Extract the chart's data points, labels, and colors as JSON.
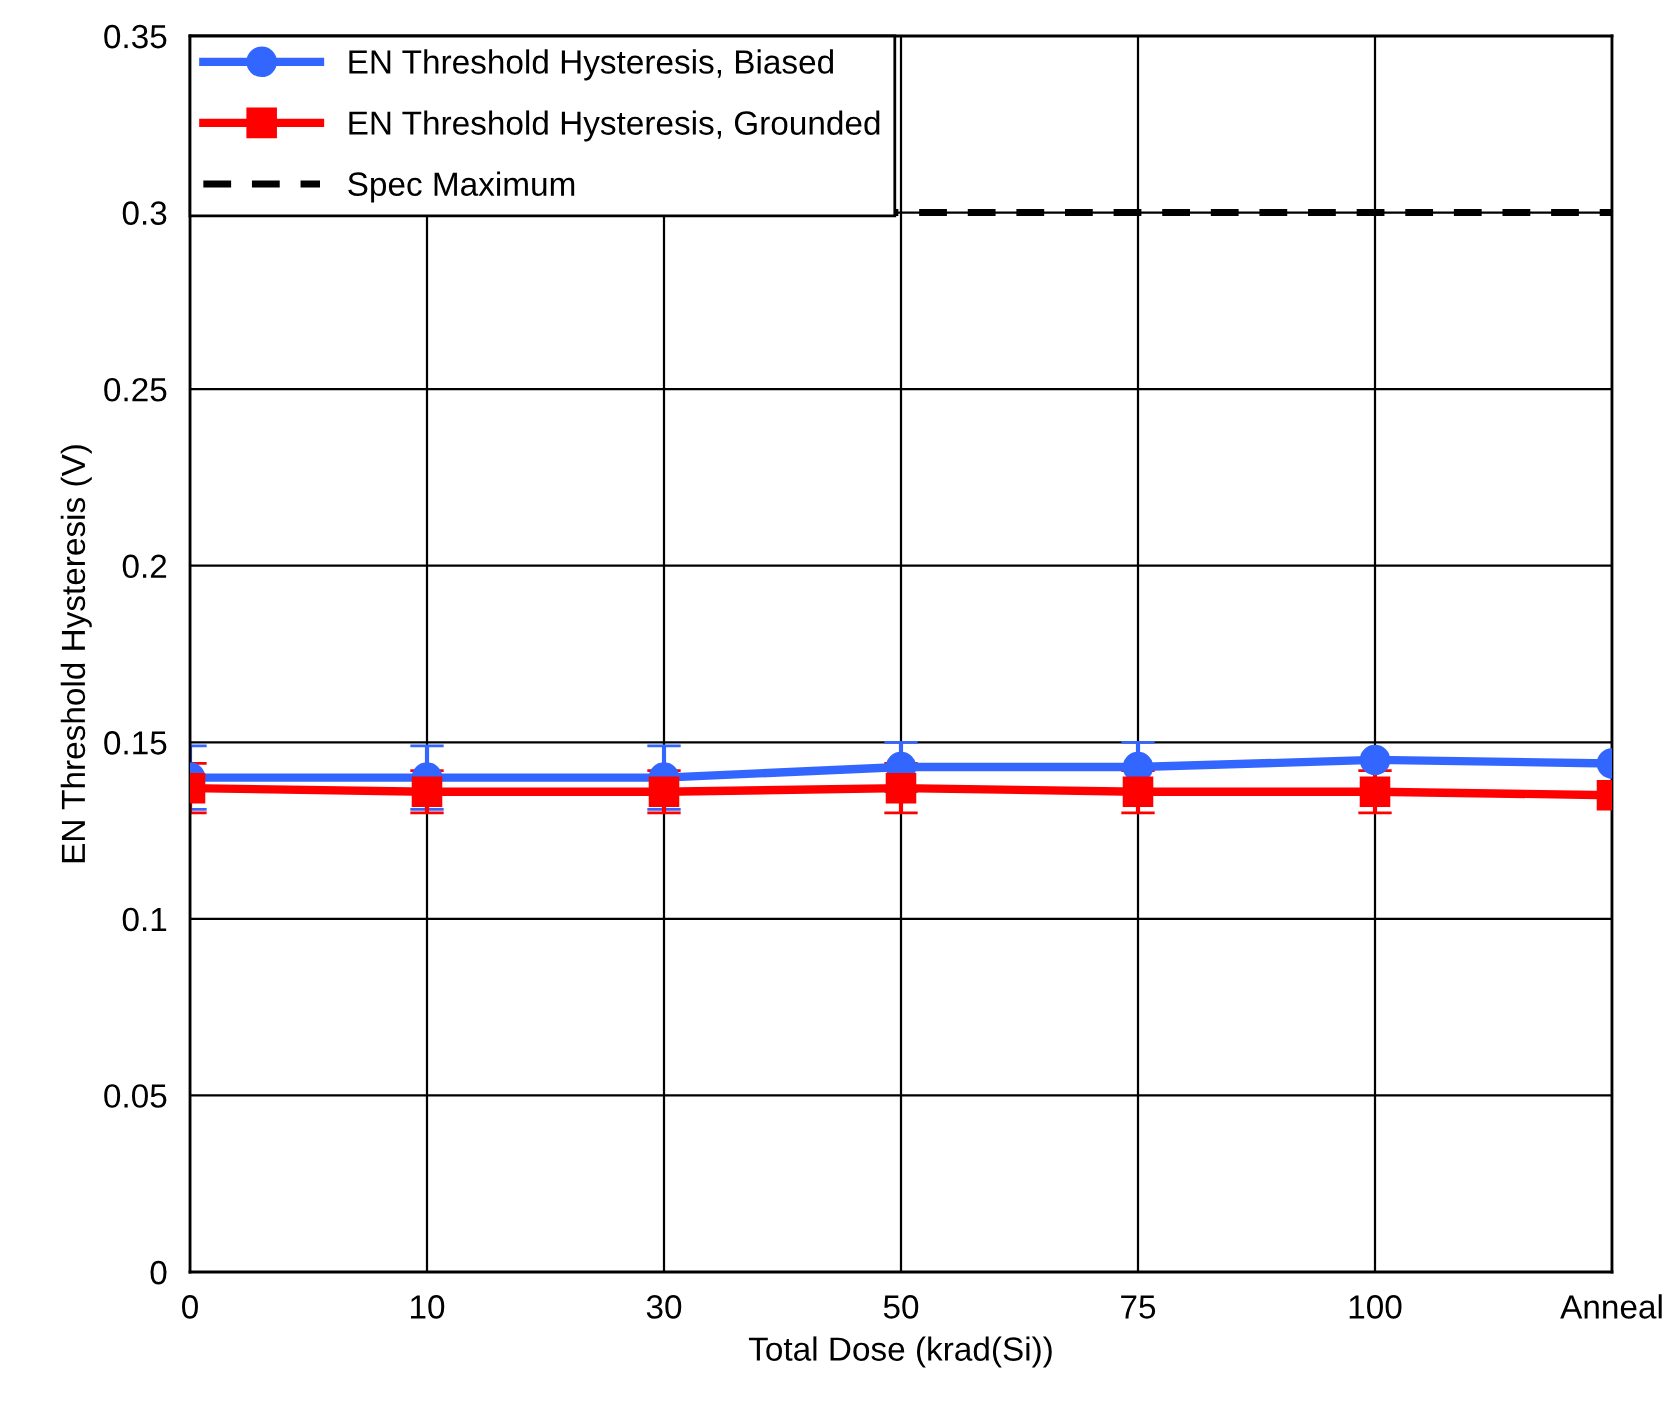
{
  "chart_data": {
    "type": "line",
    "xlabel": "Total Dose (krad(Si))",
    "ylabel": "EN Threshold Hysteresis (V)",
    "categories": [
      "0",
      "10",
      "30",
      "50",
      "75",
      "100",
      "Anneal"
    ],
    "series": [
      {
        "name": "EN Threshold Hysteresis, Biased",
        "color": "#3366ff",
        "marker": "circle",
        "values": [
          0.14,
          0.14,
          0.14,
          0.143,
          0.143,
          0.145,
          0.144
        ],
        "errors": [
          0.009,
          0.009,
          0.009,
          0.007,
          0.007,
          null,
          null
        ]
      },
      {
        "name": "EN Threshold Hysteresis, Grounded",
        "color": "#ff0000",
        "marker": "square",
        "values": [
          0.137,
          0.136,
          0.136,
          0.137,
          0.136,
          0.136,
          0.135
        ],
        "errors": [
          0.007,
          0.006,
          0.006,
          0.007,
          0.006,
          0.006,
          null
        ]
      }
    ],
    "ref_lines": [
      {
        "axis": "y",
        "value": 0.3,
        "label": "Spec Maximum",
        "color": "#000000",
        "line_style": "dashed"
      }
    ],
    "ylim": [
      0,
      0.35
    ],
    "yticks": [
      0,
      0.05,
      0.1,
      0.15,
      0.2,
      0.25,
      0.3,
      0.35
    ],
    "grid": true,
    "legend": "top left"
  }
}
